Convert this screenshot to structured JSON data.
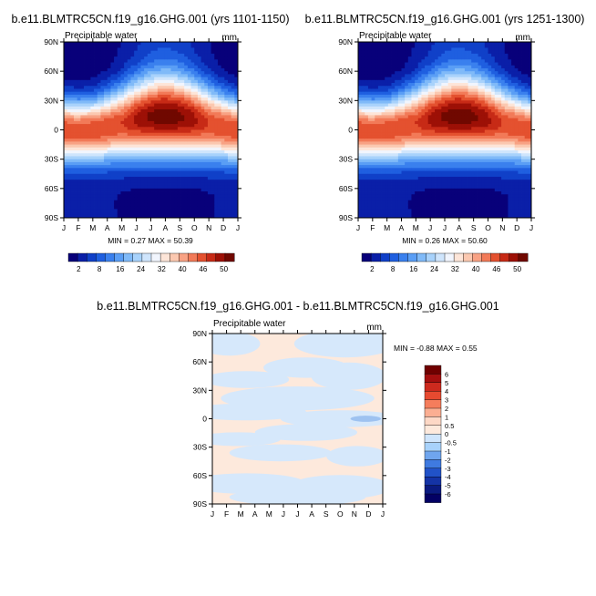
{
  "panels": [
    {
      "title": "b.e11.BLMTRC5CN.f19_g16.GHG.001 (yrs 1101-1150)",
      "subtitle": "Precipitable water",
      "units": "mm",
      "stats": "MIN =  0.27 MAX = 50.39"
    },
    {
      "title": "b.e11.BLMTRC5CN.f19_g16.GHG.001 (yrs 1251-1300)",
      "subtitle": "Precipitable water",
      "units": "mm",
      "stats": "MIN =  0.26 MAX = 50.60"
    },
    {
      "title": "b.e11.BLMTRC5CN.f19_g16.GHG.001 - b.e11.BLMTRC5CN.f19_g16.GHG.001",
      "subtitle": "Precipitable water",
      "units": "mm",
      "stats": "MIN =  -0.88 MAX =   0.55"
    }
  ],
  "chart_data": [
    {
      "type": "heatmap",
      "title": "b.e11.BLMTRC5CN.f19_g16.GHG.001 (yrs 1101-1150)",
      "subtitle": "Precipitable water",
      "units": "mm",
      "x_ticks": [
        "J",
        "F",
        "M",
        "A",
        "M",
        "J",
        "J",
        "A",
        "S",
        "O",
        "N",
        "D",
        "J"
      ],
      "y_ticks": [
        "90N",
        "60N",
        "30N",
        "0",
        "30S",
        "60S",
        "90S"
      ],
      "min": 0.27,
      "max": 50.39,
      "colorbar_labels": [
        "2",
        "8",
        "16",
        "24",
        "32",
        "40",
        "46",
        "50"
      ],
      "notes": "zonal-mean precipitable water by month and latitude; maximum (~50 mm) near 10N in Aug, lowest (<2 mm) at high latitudes in winter"
    },
    {
      "type": "heatmap",
      "title": "b.e11.BLMTRC5CN.f19_g16.GHG.001 (yrs 1251-1300)",
      "subtitle": "Precipitable water",
      "units": "mm",
      "x_ticks": [
        "J",
        "F",
        "M",
        "A",
        "M",
        "J",
        "J",
        "A",
        "S",
        "O",
        "N",
        "D",
        "J"
      ],
      "y_ticks": [
        "90N",
        "60N",
        "30N",
        "0",
        "30S",
        "60S",
        "90S"
      ],
      "min": 0.26,
      "max": 50.6,
      "colorbar_labels": [
        "2",
        "8",
        "16",
        "24",
        "32",
        "40",
        "46",
        "50"
      ]
    },
    {
      "type": "heatmap",
      "title": "b.e11.BLMTRC5CN.f19_g16.GHG.001 - b.e11.BLMTRC5CN.f19_g16.GHG.001",
      "subtitle": "Precipitable water",
      "units": "mm",
      "x_ticks": [
        "J",
        "F",
        "M",
        "A",
        "M",
        "J",
        "J",
        "A",
        "S",
        "O",
        "N",
        "D",
        "J"
      ],
      "y_ticks": [
        "90N",
        "60N",
        "30N",
        "0",
        "30S",
        "60S",
        "90S"
      ],
      "min": -0.88,
      "max": 0.55,
      "colorbar_labels": [
        "6",
        "5",
        "4",
        "3",
        "2",
        "1",
        "0.5",
        "0",
        "-0.5",
        "-1",
        "-2",
        "-3",
        "-4",
        "-5",
        "-6"
      ]
    }
  ],
  "colors": {
    "absolute_scale": [
      "#08007a",
      "#0a1fa8",
      "#1040c8",
      "#1f5fe0",
      "#3a80ee",
      "#5a9ef5",
      "#80baf8",
      "#a8d2fb",
      "#cfe5fc",
      "#f1f5fd",
      "#fde5d8",
      "#fbc8b0",
      "#f8a284",
      "#f27a58",
      "#e4512f",
      "#c72a16",
      "#9d1006",
      "#700800"
    ],
    "difference_scale": [
      "#700000",
      "#a50f0f",
      "#cd2a1e",
      "#e74a30",
      "#f57d5c",
      "#fbae92",
      "#fdd8c6",
      "#fde9dc",
      "#cfe5fc",
      "#a8d2fb",
      "#6fa5ee",
      "#3f7ae0",
      "#2152c8",
      "#1433a6",
      "#0a1a80",
      "#030064"
    ],
    "diff_pos": "#fde9dc",
    "diff_neg": "#d6e8fb",
    "diff_neg_strong": "#9ec2f0"
  }
}
